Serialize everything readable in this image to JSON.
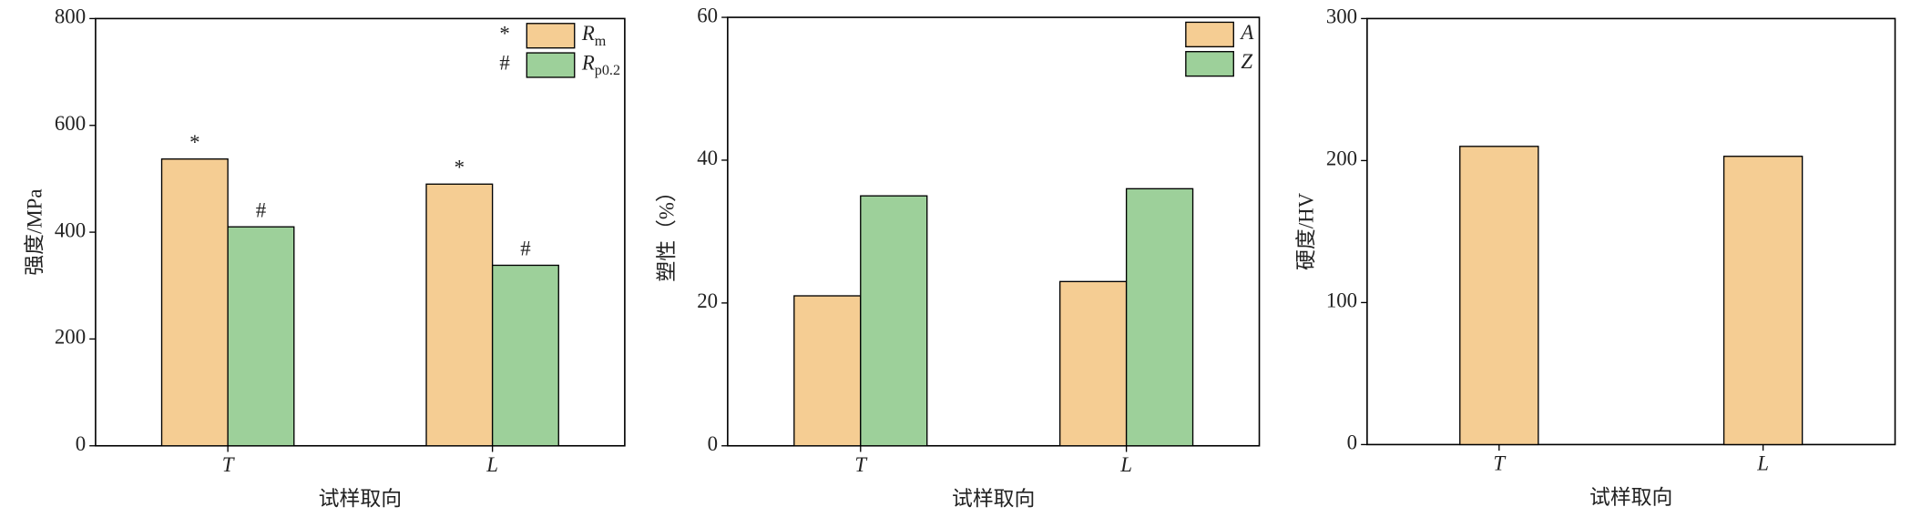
{
  "chart_data": [
    {
      "type": "bar",
      "xlabel": "试样取向",
      "ylabel": "强度/MPa",
      "categories": [
        "T",
        "L"
      ],
      "ylim": [
        0,
        800
      ],
      "yticks": [
        0,
        200,
        400,
        600,
        800
      ],
      "series": [
        {
          "name": "R",
          "subscript": "m",
          "marker": "*",
          "color": "#f5cd93",
          "values": [
            537,
            490
          ]
        },
        {
          "name": "R",
          "subscript": "p0.2",
          "marker": "#",
          "color": "#9dd09a",
          "values": [
            410,
            338
          ]
        }
      ]
    },
    {
      "type": "bar",
      "xlabel": "试样取向",
      "ylabel": "塑性（%）",
      "categories": [
        "T",
        "L"
      ],
      "ylim": [
        0,
        60
      ],
      "yticks": [
        0,
        20,
        40,
        60
      ],
      "series": [
        {
          "name": "A",
          "color": "#f5cd93",
          "values": [
            21,
            23
          ]
        },
        {
          "name": "Z",
          "color": "#9dd09a",
          "values": [
            35,
            36
          ]
        }
      ]
    },
    {
      "type": "bar",
      "xlabel": "试样取向",
      "ylabel": "硬度/HV",
      "categories": [
        "T",
        "L"
      ],
      "ylim": [
        0,
        300
      ],
      "yticks": [
        0,
        100,
        200,
        300
      ],
      "series": [
        {
          "color": "#f5cd93",
          "values": [
            210,
            203
          ]
        }
      ]
    }
  ]
}
